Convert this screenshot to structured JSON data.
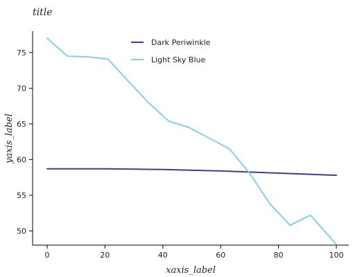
{
  "chart_data": {
    "type": "line",
    "title": "title",
    "xlabel": "xaxis_label",
    "ylabel": "yaxis_label",
    "xlim": [
      0,
      100
    ],
    "ylim": [
      48,
      78
    ],
    "xticks": [
      0,
      20,
      40,
      60,
      80,
      100
    ],
    "yticks": [
      50,
      55,
      60,
      65,
      70,
      75
    ],
    "grid": false,
    "legend_position": "top-right",
    "series": [
      {
        "name": "Dark Periwinkle",
        "color": "#3f3d8f",
        "x": [
          0,
          20,
          40,
          60,
          80,
          100
        ],
        "y": [
          58.7,
          58.7,
          58.6,
          58.4,
          58.1,
          57.8
        ]
      },
      {
        "name": "Light Sky Blue",
        "color": "#87ceeb",
        "x": [
          0,
          7,
          14,
          21,
          28,
          35,
          42,
          49,
          56,
          63,
          70,
          77,
          84,
          91,
          100
        ],
        "y": [
          77,
          74.5,
          74.4,
          74.1,
          71,
          68,
          65.4,
          64.5,
          63,
          61.5,
          58.1,
          53.8,
          50.8,
          52.2,
          48.1
        ]
      }
    ]
  }
}
